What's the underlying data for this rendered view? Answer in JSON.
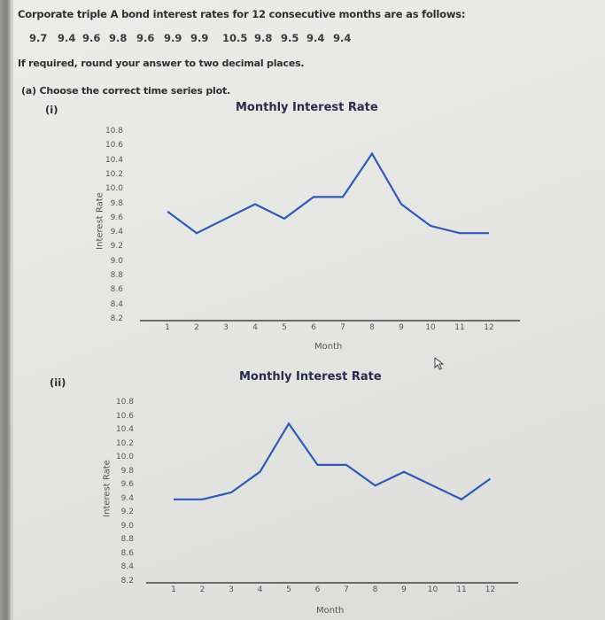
{
  "question": {
    "intro": "Corporate triple A bond interest rates for 12 consecutive months are as follows:",
    "values": [
      "9.7",
      "9.4",
      "9.6",
      "9.8",
      "9.6",
      "9.9",
      "9.9",
      "10.5",
      "9.8",
      "9.5",
      "9.4",
      "9.4"
    ],
    "rounding_note": "If required, round your answer to two decimal places.",
    "part_a_label": "(a)",
    "part_a_text": "Choose the correct time series plot."
  },
  "options": [
    {
      "label": "(i)"
    },
    {
      "label": "(ii)"
    }
  ],
  "colors": {
    "line": "#2f5bb7",
    "axis": "#6a6a6a"
  },
  "chart_data": [
    {
      "type": "line",
      "option": "(i)",
      "title": "Monthly Interest Rate",
      "xlabel": "Month",
      "ylabel": "Interest Rate",
      "x": [
        1,
        2,
        3,
        4,
        5,
        6,
        7,
        8,
        9,
        10,
        11,
        12
      ],
      "xticks": [
        "1",
        "2",
        "3",
        "4",
        "5",
        "6",
        "7",
        "8",
        "9",
        "10",
        "11",
        "12"
      ],
      "yticks": [
        "10.8",
        "10.6",
        "10.4",
        "10.2",
        "10.0",
        "9.8",
        "9.6",
        "9.4",
        "9.2",
        "9.0",
        "8.8",
        "8.6",
        "8.4",
        "8.2"
      ],
      "ylim": [
        8.2,
        10.8
      ],
      "grid": false,
      "series": [
        {
          "name": "Interest Rate",
          "values": [
            9.7,
            9.4,
            9.6,
            9.8,
            9.6,
            9.9,
            9.9,
            10.5,
            9.8,
            9.5,
            9.4,
            9.4
          ]
        }
      ]
    },
    {
      "type": "line",
      "option": "(ii)",
      "title": "Monthly Interest Rate",
      "xlabel": "Month",
      "ylabel": "Interest Rate",
      "x": [
        1,
        2,
        3,
        4,
        5,
        6,
        7,
        8,
        9,
        10,
        11,
        12
      ],
      "xticks": [
        "1",
        "2",
        "3",
        "4",
        "5",
        "6",
        "7",
        "8",
        "9",
        "10",
        "11",
        "12"
      ],
      "yticks": [
        "10.8",
        "10.6",
        "10.4",
        "10.2",
        "10.0",
        "9.8",
        "9.6",
        "9.4",
        "9.2",
        "9.0",
        "8.8",
        "8.6",
        "8.4",
        "8.2"
      ],
      "ylim": [
        8.2,
        10.8
      ],
      "grid": false,
      "series": [
        {
          "name": "Interest Rate",
          "values": [
            9.4,
            9.4,
            9.5,
            9.8,
            10.5,
            9.9,
            9.9,
            9.6,
            9.8,
            9.6,
            9.4,
            9.7
          ]
        }
      ]
    }
  ]
}
